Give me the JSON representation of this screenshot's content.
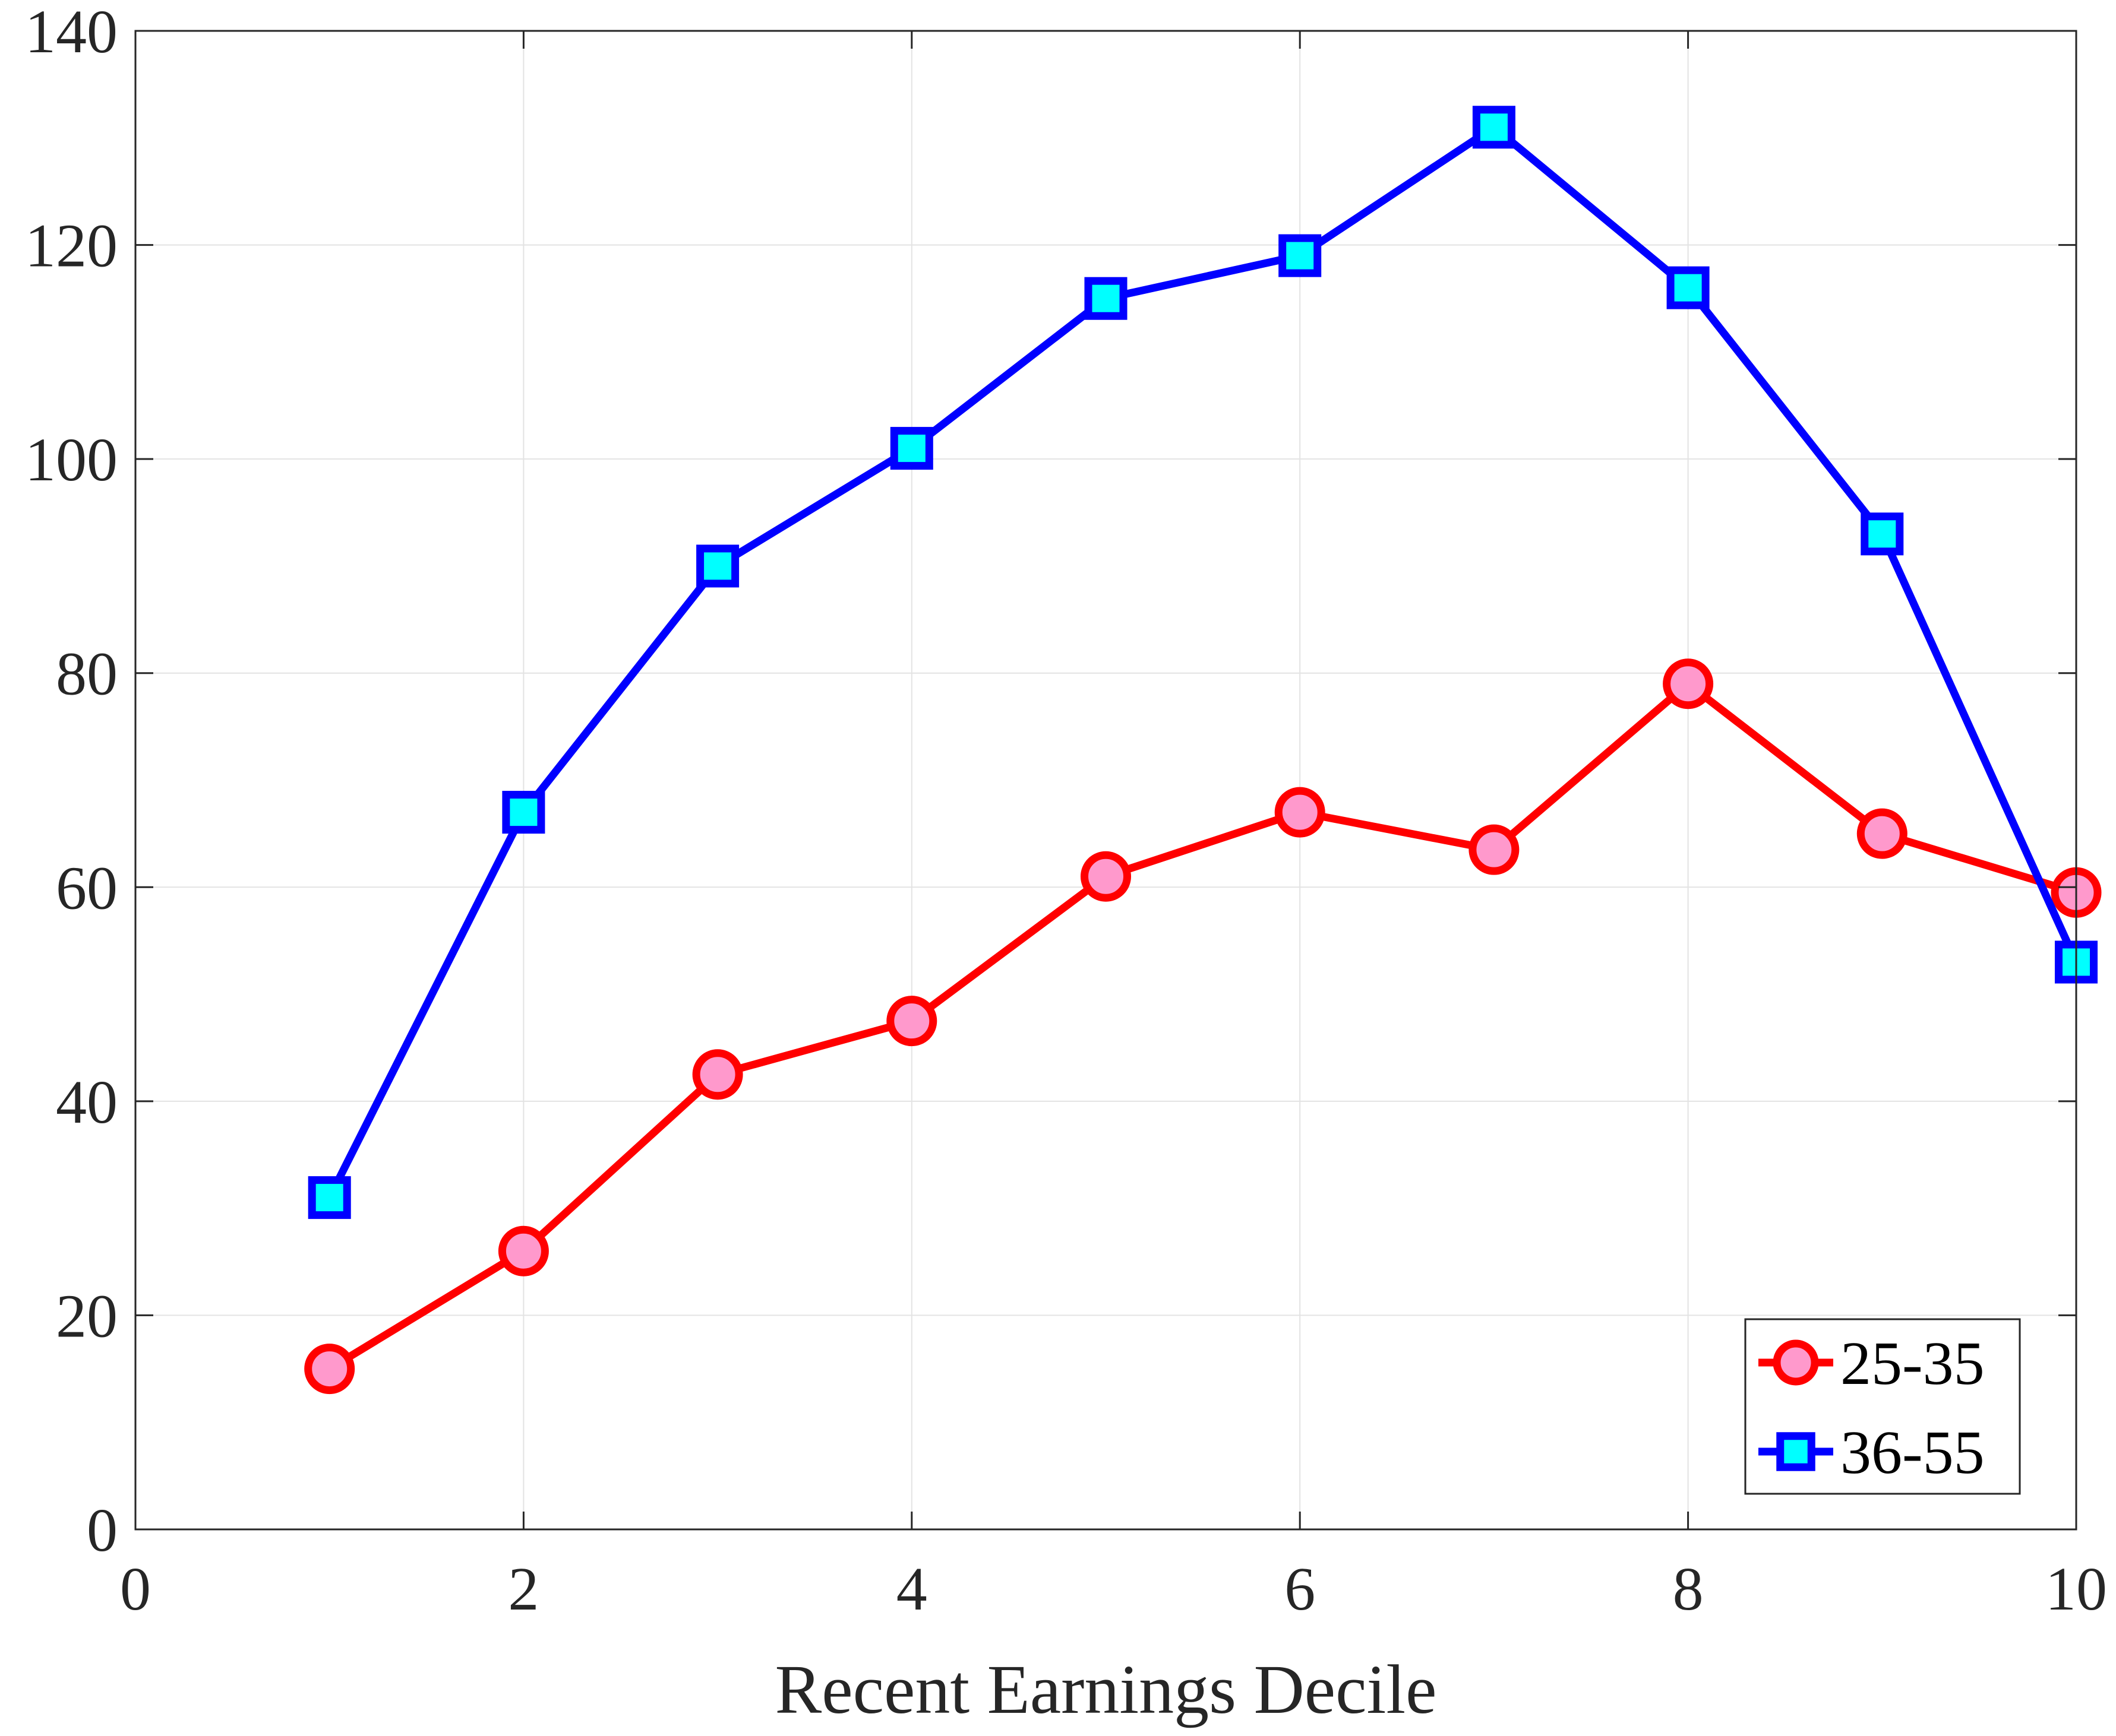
{
  "chart_data": {
    "type": "line",
    "title": "",
    "xlabel": "Recent Earnings Decile",
    "ylabel": "",
    "xlim": [
      0,
      10
    ],
    "ylim": [
      0,
      140
    ],
    "xticks": [
      0,
      2,
      4,
      6,
      8,
      10
    ],
    "yticks": [
      0,
      20,
      40,
      60,
      80,
      100,
      120,
      140
    ],
    "grid": true,
    "legend_position": "bottom-right",
    "x": [
      1,
      2,
      3,
      4,
      5,
      6,
      7,
      8,
      9,
      10
    ],
    "series": [
      {
        "name": "25-35",
        "values": [
          15,
          26,
          42.5,
          47.5,
          61,
          67,
          63.5,
          79,
          65,
          59.5
        ],
        "line_color": "#ff0000",
        "marker": "circle",
        "marker_fill": "#ff99cc"
      },
      {
        "name": "36-55",
        "values": [
          31,
          67,
          90,
          101,
          115,
          119,
          131,
          116,
          93,
          53
        ],
        "line_color": "#0000ff",
        "marker": "square",
        "marker_fill": "#00ffff"
      }
    ]
  }
}
